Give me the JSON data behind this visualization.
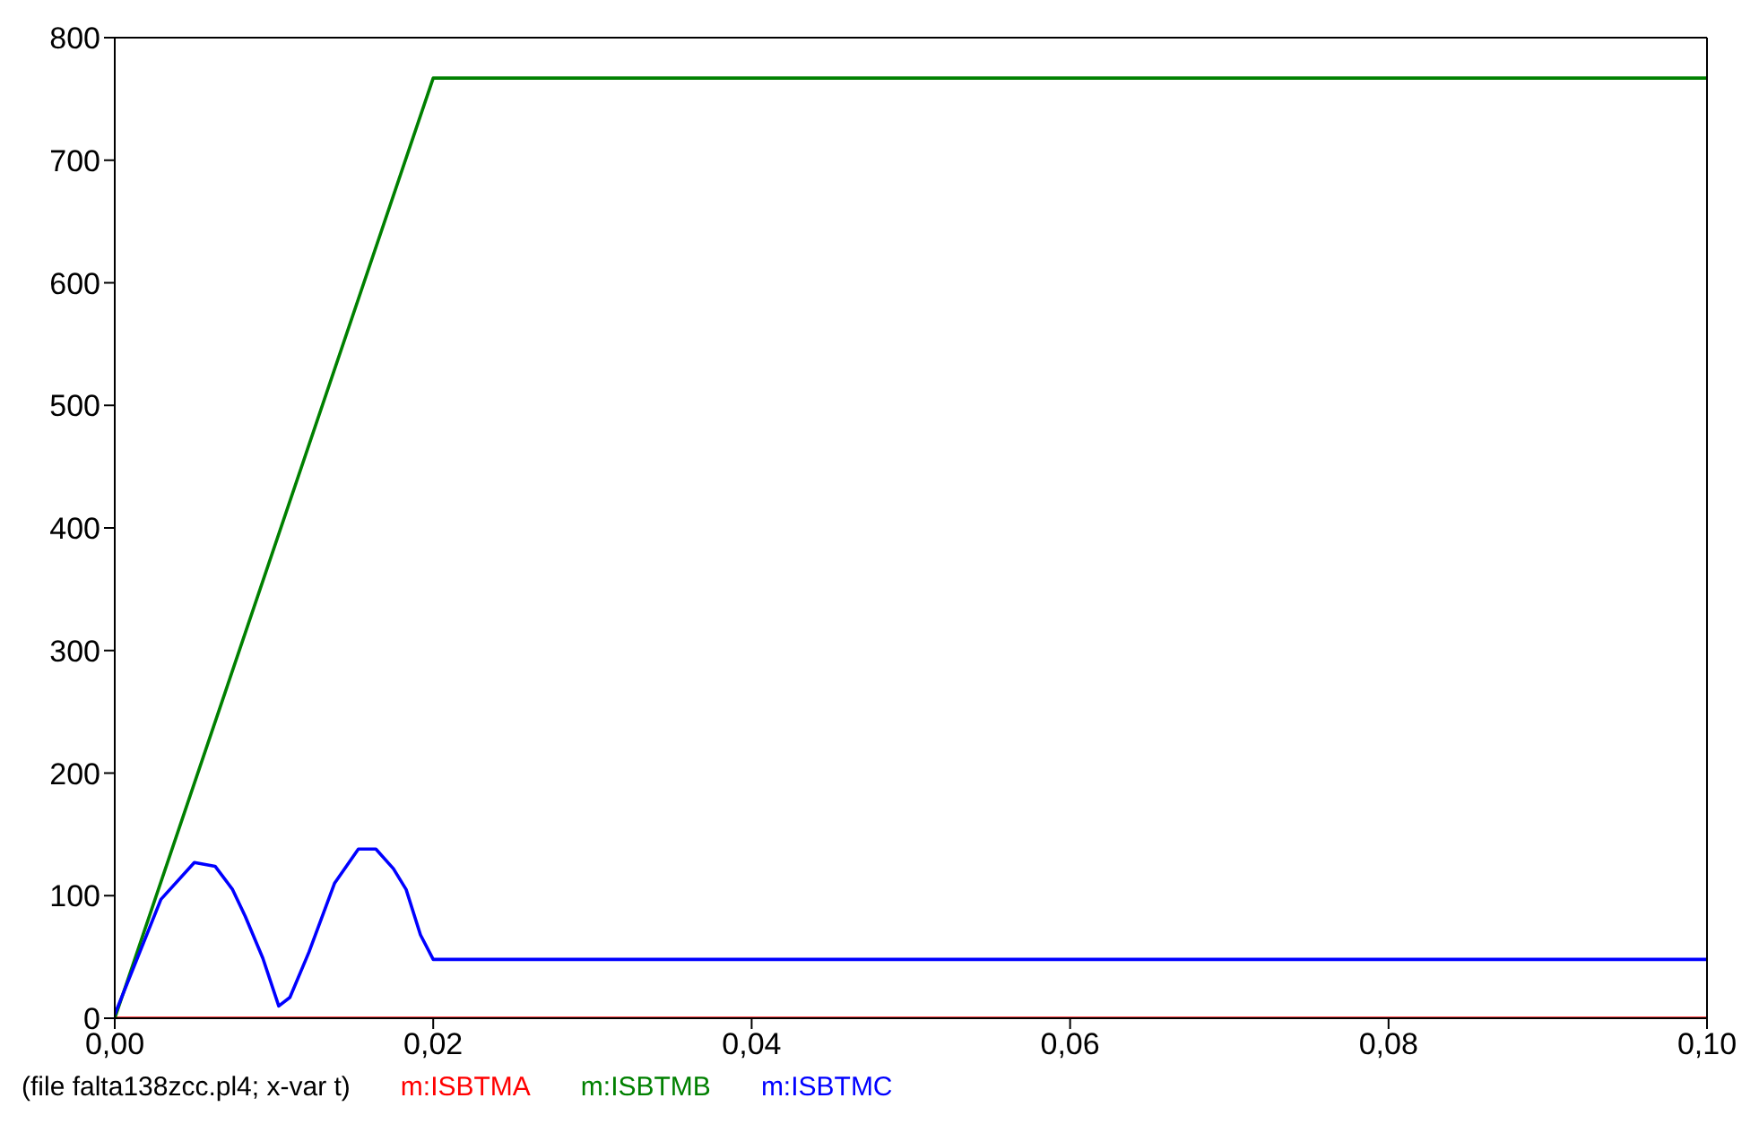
{
  "chart_data": {
    "type": "line",
    "annotations": [
      "(file falta138zcc.pl4; x-var t)"
    ],
    "series": [
      {
        "name": "m:ISBTMA",
        "color": "#ff0000",
        "x": [
          0,
          0.1
        ],
        "values": [
          0,
          0
        ]
      },
      {
        "name": "m:ISBTMB",
        "color": "#008000",
        "x": [
          0,
          0.02,
          0.1
        ],
        "values": [
          0,
          767,
          767
        ]
      },
      {
        "name": "m:ISBTMC",
        "color": "#0000ff",
        "x": [
          0,
          0.0029,
          0.005,
          0.0063,
          0.0074,
          0.0082,
          0.0093,
          0.0103,
          0.011,
          0.0122,
          0.0138,
          0.0153,
          0.0164,
          0.0175,
          0.0183,
          0.0192,
          0.02,
          0.1
        ],
        "values": [
          3,
          97,
          127,
          124,
          105,
          83,
          49,
          10,
          17,
          54,
          110,
          138,
          138,
          122,
          105,
          68,
          48,
          48
        ]
      }
    ],
    "xlim": [
      0,
      0.1
    ],
    "xticks": [
      {
        "value": 0,
        "label": "0,00"
      },
      {
        "value": 0.02,
        "label": "0,02"
      },
      {
        "value": 0.04,
        "label": "0,04"
      },
      {
        "value": 0.06,
        "label": "0,06"
      },
      {
        "value": 0.08,
        "label": "0,08"
      },
      {
        "value": 0.1,
        "label": "0,10"
      }
    ],
    "ylim": [
      0,
      800
    ],
    "yticks": [
      0,
      100,
      200,
      300,
      400,
      500,
      600,
      700,
      800
    ],
    "legend": "bottom",
    "marker": "none",
    "line_style": "solid"
  }
}
